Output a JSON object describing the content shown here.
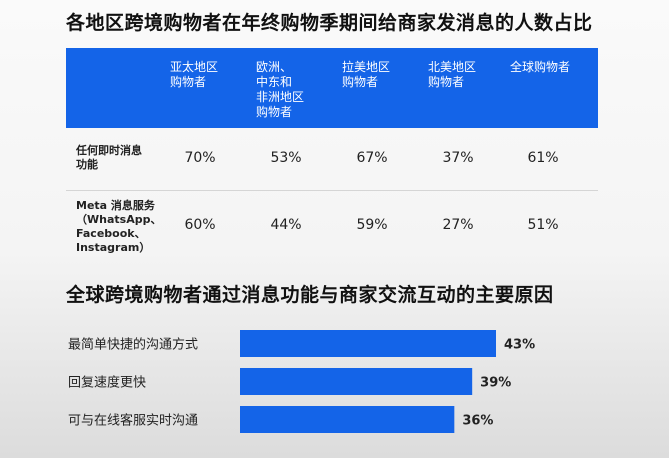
{
  "title1": "各地区跨境购物者在年终购物季期间给商家发消息的人数占比",
  "title2": "全球跨境购物者通过消息功能与商家交流互动的主要原因",
  "table": {
    "headers": [
      "亚太地区\n购物者",
      "欧洲、\n中东和\n非洲地区\n购物者",
      "拉美地区\n购物者",
      "北美地区\n购物者",
      "全球购物者"
    ],
    "rows": [
      {
        "label": "任何即时消息\n功能",
        "values": [
          "70%",
          "53%",
          "67%",
          "37%",
          "61%"
        ]
      },
      {
        "label": "Meta 消息服务\n（WhatsApp、\nFacebook、\nInstagram）",
        "values": [
          "60%",
          "44%",
          "59%",
          "27%",
          "51%"
        ]
      }
    ]
  },
  "colors": {
    "accent": "#1464e8"
  },
  "chart_data": [
    {
      "type": "table",
      "title": "各地区跨境购物者在年终购物季期间给商家发消息的人数占比",
      "columns": [
        "亚太地区购物者",
        "欧洲、中东和非洲地区购物者",
        "拉美地区购物者",
        "北美地区购物者",
        "全球购物者"
      ],
      "rows": [
        {
          "name": "任何即时消息功能",
          "values": [
            70,
            53,
            67,
            37,
            61
          ]
        },
        {
          "name": "Meta 消息服务（WhatsApp、Facebook、Instagram）",
          "values": [
            60,
            44,
            59,
            27,
            51
          ]
        }
      ]
    },
    {
      "type": "bar",
      "orientation": "horizontal",
      "title": "全球跨境购物者通过消息功能与商家交流互动的主要原因",
      "categories": [
        "最简单快捷的沟通方式",
        "回复速度更快",
        "可与在线客服实时沟通"
      ],
      "values": [
        43,
        39,
        36
      ],
      "value_labels": [
        "43%",
        "39%",
        "36%"
      ],
      "grid": false
    }
  ]
}
